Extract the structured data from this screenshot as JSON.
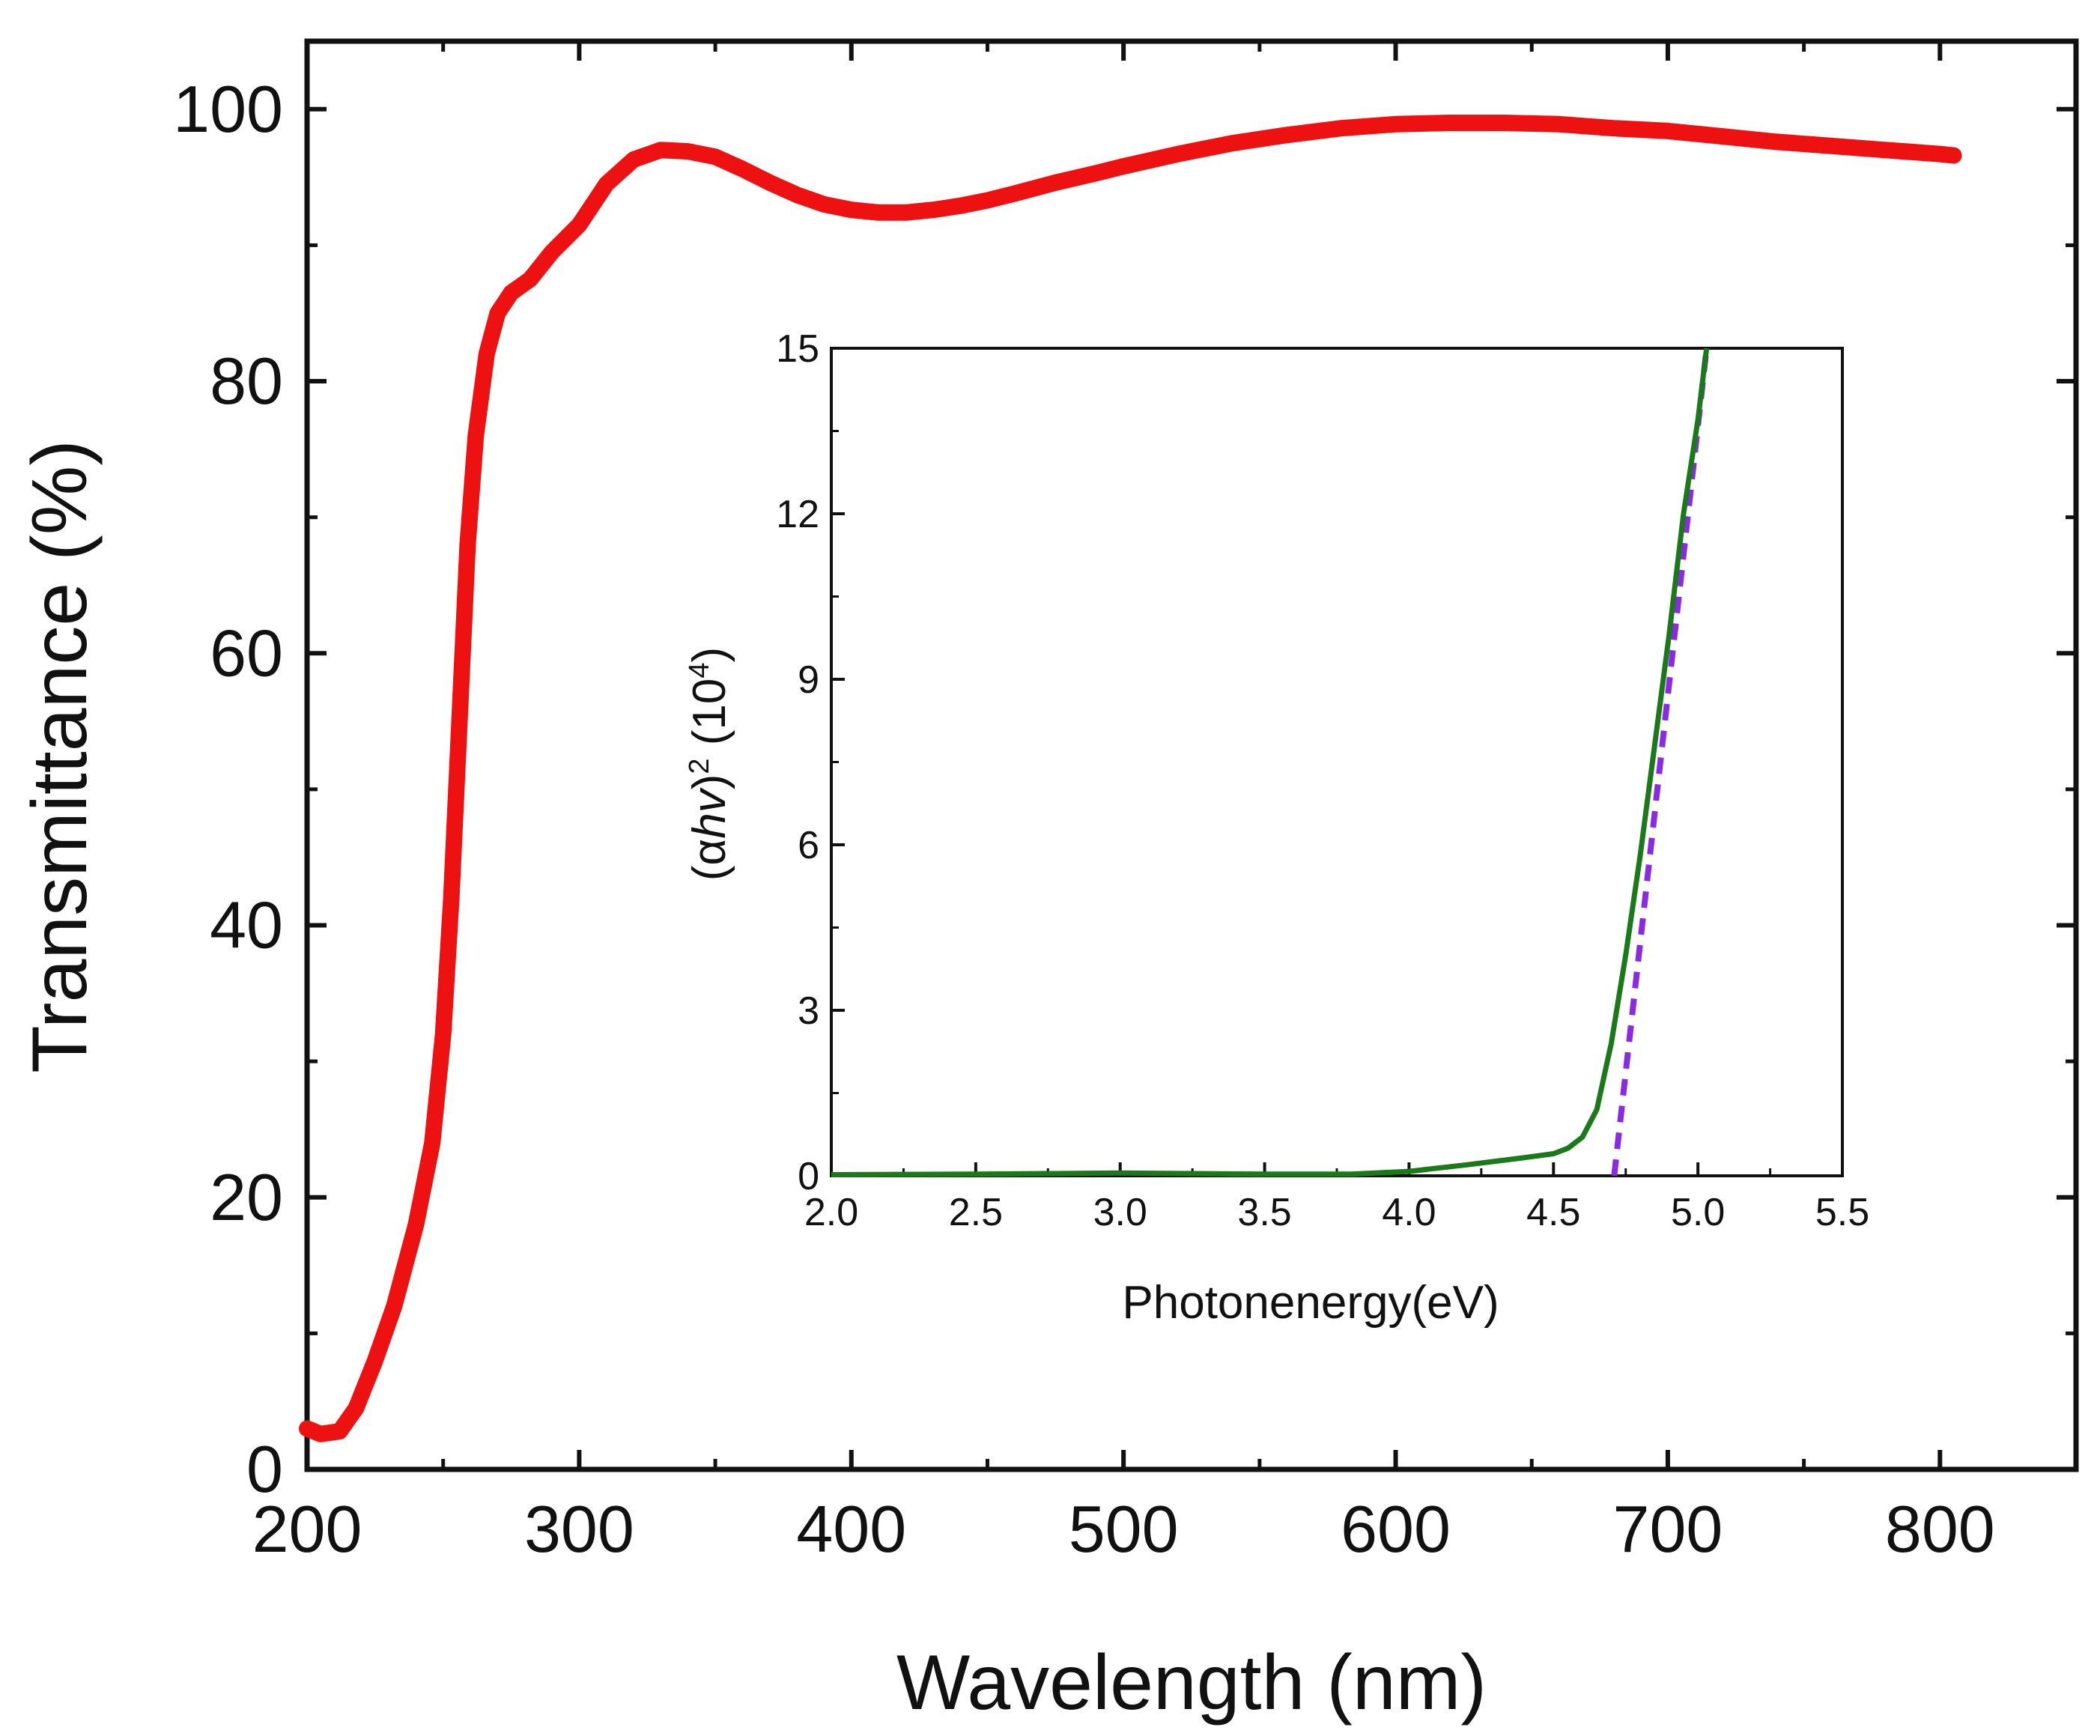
{
  "chart_data": [
    {
      "id": "main",
      "type": "line",
      "xlabel": "Wavelength (nm)",
      "ylabel": "Transmittance (%)",
      "xlim": [
        200,
        850
      ],
      "ylim": [
        0,
        105
      ],
      "xticks": [
        200,
        300,
        400,
        500,
        600,
        700,
        800
      ],
      "yticks": [
        0,
        20,
        40,
        60,
        80,
        100
      ],
      "series": [
        {
          "name": "Transmittance",
          "color": "#ee1111",
          "points": [
            [
              200,
              3.0
            ],
            [
              205,
              2.6
            ],
            [
              212,
              2.8
            ],
            [
              218,
              4.5
            ],
            [
              225,
              8.0
            ],
            [
              232,
              12.0
            ],
            [
              240,
              18.0
            ],
            [
              246,
              24.0
            ],
            [
              250,
              32.0
            ],
            [
              253,
              42.0
            ],
            [
              256,
              55.0
            ],
            [
              259,
              68.0
            ],
            [
              262,
              76.0
            ],
            [
              266,
              82.0
            ],
            [
              270,
              85.0
            ],
            [
              275,
              86.5
            ],
            [
              282,
              87.5
            ],
            [
              290,
              89.5
            ],
            [
              300,
              91.5
            ],
            [
              310,
              94.5
            ],
            [
              320,
              96.3
            ],
            [
              330,
              97.0
            ],
            [
              340,
              96.9
            ],
            [
              350,
              96.5
            ],
            [
              360,
              95.6
            ],
            [
              370,
              94.6
            ],
            [
              380,
              93.7
            ],
            [
              390,
              93.0
            ],
            [
              400,
              92.6
            ],
            [
              410,
              92.4
            ],
            [
              420,
              92.4
            ],
            [
              430,
              92.6
            ],
            [
              440,
              92.9
            ],
            [
              450,
              93.3
            ],
            [
              460,
              93.8
            ],
            [
              475,
              94.6
            ],
            [
              490,
              95.3
            ],
            [
              500,
              95.8
            ],
            [
              520,
              96.7
            ],
            [
              540,
              97.5
            ],
            [
              560,
              98.1
            ],
            [
              580,
              98.6
            ],
            [
              600,
              98.9
            ],
            [
              620,
              99.0
            ],
            [
              640,
              99.0
            ],
            [
              660,
              98.9
            ],
            [
              680,
              98.6
            ],
            [
              700,
              98.4
            ],
            [
              720,
              98.0
            ],
            [
              740,
              97.6
            ],
            [
              760,
              97.3
            ],
            [
              780,
              97.0
            ],
            [
              800,
              96.7
            ],
            [
              805,
              96.6
            ]
          ]
        }
      ]
    },
    {
      "id": "inset",
      "type": "line",
      "xlabel": "Photonenergy(eV)",
      "ylabel": {
        "prefix": "(α",
        "italic": "hv",
        "close": ")",
        "sup1": "2",
        "mid": " (10",
        "sup2": "4",
        "end": ")"
      },
      "xlim": [
        2.0,
        5.5
      ],
      "ylim": [
        0,
        15
      ],
      "xticks": [
        "2.0",
        "2.5",
        "3.0",
        "3.5",
        "4.0",
        "4.5",
        "5.0",
        "5.5"
      ],
      "yticks": [
        "0",
        "3",
        "6",
        "9",
        "12",
        "15"
      ],
      "series": [
        {
          "name": "(αhv)^2",
          "color": "#1a7a1a",
          "style": "solid",
          "points": [
            [
              2.0,
              0.02
            ],
            [
              2.5,
              0.03
            ],
            [
              3.0,
              0.05
            ],
            [
              3.5,
              0.03
            ],
            [
              3.8,
              0.03
            ],
            [
              4.0,
              0.08
            ],
            [
              4.2,
              0.2
            ],
            [
              4.4,
              0.33
            ],
            [
              4.5,
              0.4
            ],
            [
              4.55,
              0.5
            ],
            [
              4.6,
              0.7
            ],
            [
              4.65,
              1.2
            ],
            [
              4.7,
              2.4
            ],
            [
              4.75,
              4.0
            ],
            [
              4.8,
              5.8
            ],
            [
              4.85,
              7.8
            ],
            [
              4.9,
              9.8
            ],
            [
              4.95,
              12.0
            ],
            [
              5.0,
              13.7
            ],
            [
              5.03,
              15.0
            ]
          ]
        },
        {
          "name": "linear fit",
          "color": "#8a2be2",
          "style": "dashed",
          "points": [
            [
              4.71,
              0
            ],
            [
              5.03,
              15.0
            ]
          ]
        }
      ]
    }
  ]
}
